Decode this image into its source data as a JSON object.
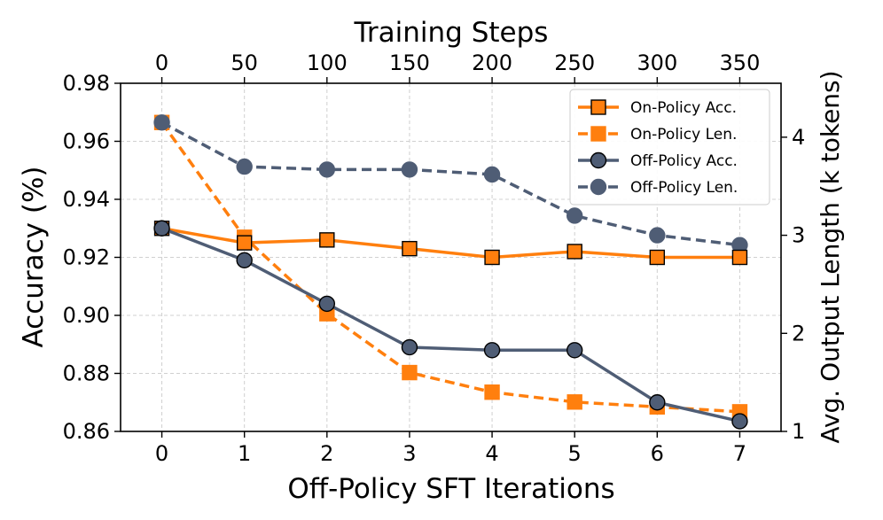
{
  "chart_data": {
    "type": "line",
    "x": [
      0,
      1,
      2,
      3,
      4,
      5,
      6,
      7
    ],
    "xlabel": "Off-Policy SFT Iterations",
    "top_xlabel": "Training Steps",
    "top_ticks": [
      "0",
      "50",
      "100",
      "150",
      "200",
      "250",
      "300",
      "350"
    ],
    "ylabel_left": "Accuracy (%)",
    "ylabel_right": "Avg. Output Length (k tokens)",
    "ylim_left": [
      0.86,
      0.98
    ],
    "ylim_right": [
      1,
      4.55
    ],
    "left_ticks": [
      "0.86",
      "0.88",
      "0.90",
      "0.92",
      "0.94",
      "0.96",
      "0.98"
    ],
    "right_ticks": [
      "1",
      "2",
      "3",
      "4"
    ],
    "grid": true,
    "legend_position": "top-right",
    "series": [
      {
        "name": "On-Policy Acc.",
        "axis": "left",
        "color": "#ff7f0e",
        "marker": "square",
        "style": "solid",
        "values": [
          0.93,
          0.925,
          0.926,
          0.923,
          0.92,
          0.922,
          0.92,
          0.92
        ]
      },
      {
        "name": "On-Policy Len.",
        "axis": "right",
        "color": "#ff7f0e",
        "marker": "square",
        "style": "dashed",
        "values": [
          4.15,
          2.98,
          2.2,
          1.6,
          1.4,
          1.3,
          1.25,
          1.2
        ]
      },
      {
        "name": "Off-Policy Acc.",
        "axis": "left",
        "color": "#4f5d75",
        "marker": "circle",
        "style": "solid",
        "values": [
          0.93,
          0.919,
          0.904,
          0.889,
          0.888,
          0.888,
          0.87,
          0.8635
        ]
      },
      {
        "name": "Off-Policy Len.",
        "axis": "right",
        "color": "#4f5d75",
        "marker": "circle",
        "style": "dashed",
        "values": [
          4.15,
          3.7,
          3.67,
          3.67,
          3.62,
          3.2,
          3.0,
          2.9
        ]
      }
    ]
  }
}
